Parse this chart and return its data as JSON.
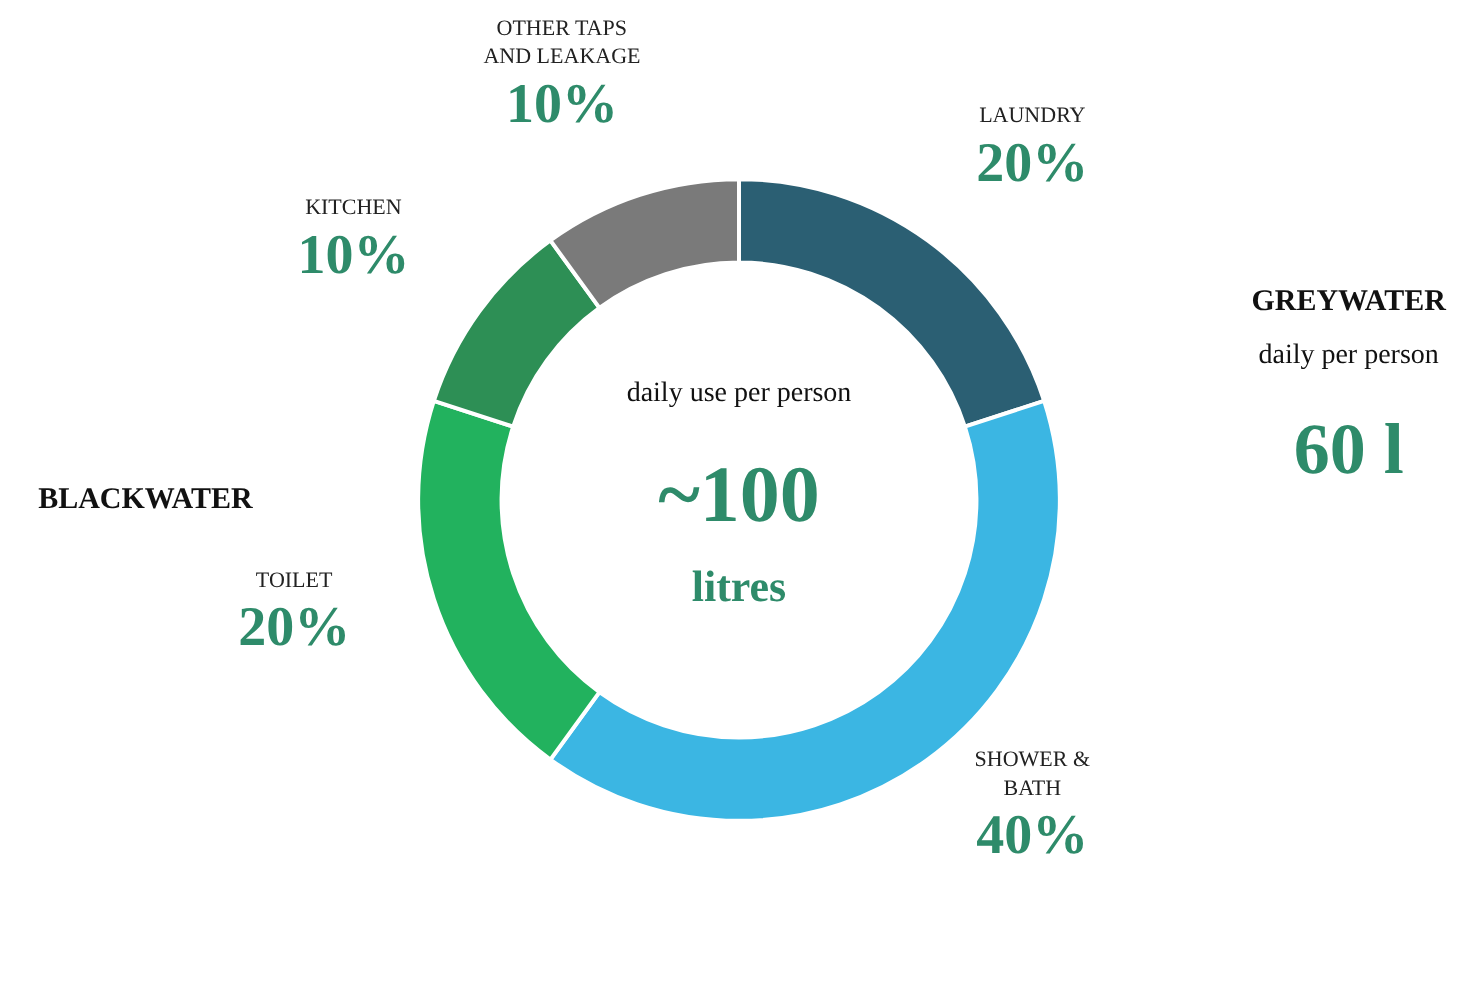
{
  "chart_data": {
    "type": "donut",
    "categories": [
      "LAUNDRY",
      "SHOWER &\nBATH",
      "TOILET",
      "KITCHEN",
      "OTHER TAPS\nAND LEAKAGE"
    ],
    "values": [
      20,
      40,
      20,
      10,
      10
    ],
    "colors": [
      "#2b5f73",
      "#3bb6e3",
      "#22b25e",
      "#2d8f55",
      "#7a7a7a"
    ],
    "value_labels": [
      "20%",
      "40%",
      "20%",
      "10%",
      "10%"
    ],
    "annotations": [
      "daily use per person",
      "~100",
      "litres",
      "BLACKWATER",
      "GREYWATER",
      "daily per person",
      "60 l"
    ]
  }
}
